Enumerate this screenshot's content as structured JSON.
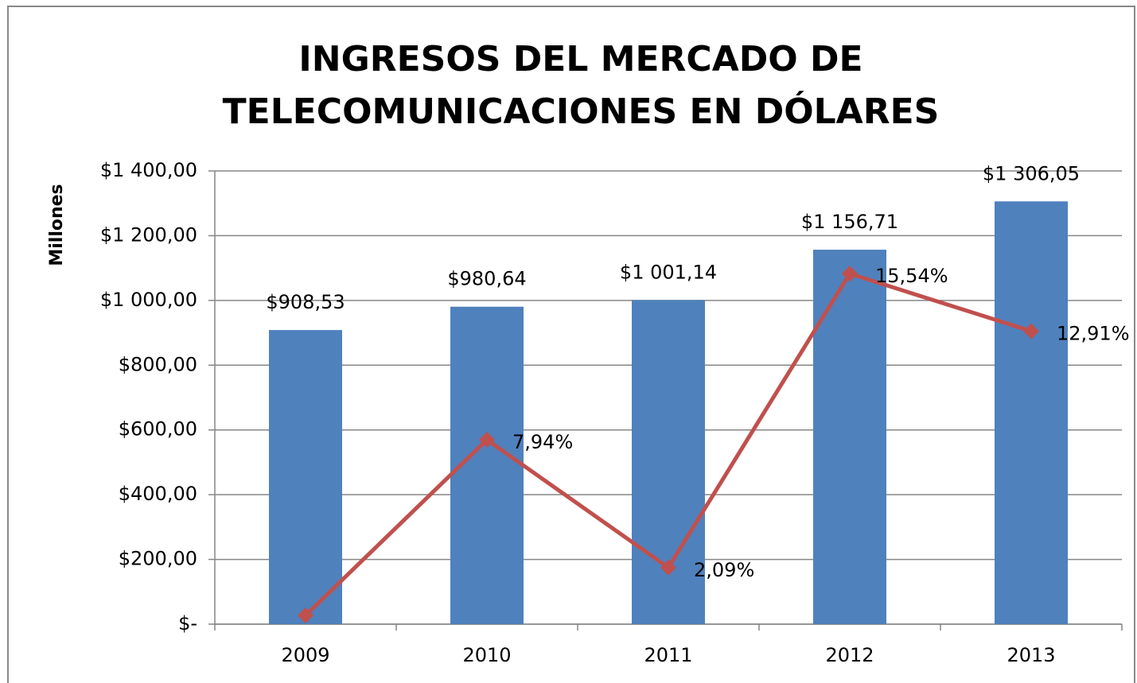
{
  "chart_data": {
    "type": "bar",
    "title": [
      "INGRESOS DEL MERCADO DE",
      "TELECOMUNICACIONES EN DÓLARES"
    ],
    "y_label": "Millones",
    "categories": [
      "2009",
      "2010",
      "2011",
      "2012",
      "2013"
    ],
    "series": [
      {
        "type": "bar",
        "color": "#4f81bd",
        "values": [
          908.53,
          980.64,
          1001.14,
          1156.71,
          1306.05
        ],
        "value_labels": [
          "$908,53",
          "$980,64",
          "$1 001,14",
          "$1 156,71",
          "$1 306,05"
        ]
      },
      {
        "type": "line",
        "axis": "y2",
        "color": "#c0504d",
        "values": [
          -0.1,
          7.94,
          2.09,
          15.54,
          12.91
        ],
        "value_labels": [
          null,
          "7,94%",
          "2,09%",
          "15,54%",
          "12,91%"
        ]
      }
    ],
    "ylim": [
      0,
      1400
    ],
    "yticks": [
      {
        "value": 0,
        "label": "$-"
      },
      {
        "value": 200,
        "label": "$200,00"
      },
      {
        "value": 400,
        "label": "$400,00"
      },
      {
        "value": 600,
        "label": "$600,00"
      },
      {
        "value": 800,
        "label": "$800,00"
      },
      {
        "value": 1000,
        "label": "$1 000,00"
      },
      {
        "value": 1200,
        "label": "$1 200,00"
      },
      {
        "value": 1400,
        "label": "$1 400,00"
      }
    ],
    "y2lim": [
      -0.5,
      20.24
    ],
    "grid": true
  }
}
